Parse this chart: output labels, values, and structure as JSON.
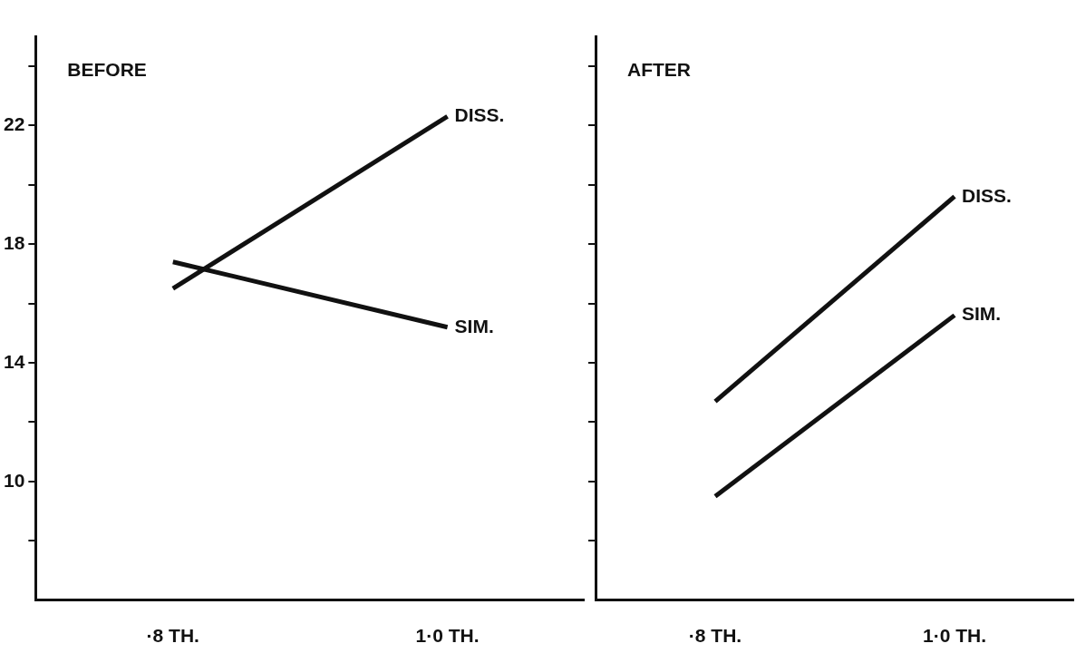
{
  "chart_data": [
    {
      "type": "line",
      "title": "BEFORE",
      "categories": [
        "·8 TH.",
        "1·0 TH."
      ],
      "series": [
        {
          "name": "DISS.",
          "color": "#111111",
          "values": [
            16.5,
            22.3
          ]
        },
        {
          "name": "SIM.",
          "color": "#111111",
          "values": [
            17.4,
            15.2
          ]
        }
      ],
      "ylim": [
        6,
        25
      ],
      "yticks": [
        {
          "value": 8,
          "label": null
        },
        10,
        {
          "value": 12,
          "label": null
        },
        14,
        {
          "value": 16,
          "label": null
        },
        18,
        {
          "value": 20,
          "label": null
        },
        22,
        {
          "value": 24,
          "label": null
        }
      ]
    },
    {
      "type": "line",
      "title": "AFTER",
      "categories": [
        "·8 TH.",
        "1·0 TH."
      ],
      "series": [
        {
          "name": "DISS.",
          "color": "#111111",
          "values": [
            12.7,
            19.6
          ]
        },
        {
          "name": "SIM.",
          "color": "#111111",
          "values": [
            9.5,
            15.6
          ]
        }
      ],
      "ylim": [
        6,
        25
      ],
      "yticks": [
        {
          "value": 8,
          "label": null
        },
        10,
        {
          "value": 12,
          "label": null
        },
        14,
        {
          "value": 16,
          "label": null
        },
        18,
        {
          "value": 20,
          "label": null
        },
        22,
        {
          "value": 24,
          "label": null
        }
      ],
      "tick_labels": "x"
    }
  ]
}
